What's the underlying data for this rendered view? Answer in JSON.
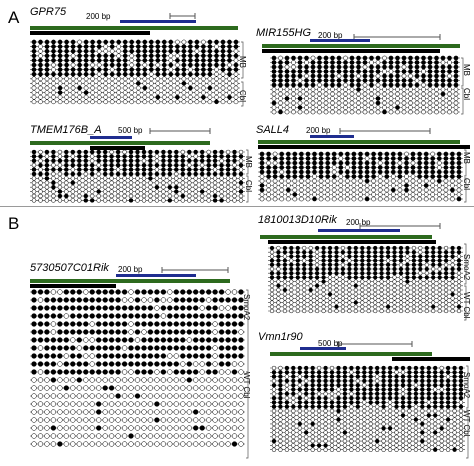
{
  "sections": {
    "a": "A",
    "b": "B"
  },
  "panels": [
    {
      "id": "gpr75",
      "gene": "GPR75",
      "scale": "200 bp",
      "groups": [
        "MB",
        "Cbl"
      ]
    },
    {
      "id": "mir155hg",
      "gene": "MIR155HG",
      "scale": "200 bp",
      "groups": [
        "MB",
        "Cbl"
      ]
    },
    {
      "id": "tmem176b",
      "gene": "TMEM176B_A",
      "scale": "500 bp",
      "groups": [
        "MB",
        "Cbl"
      ]
    },
    {
      "id": "sall4",
      "gene": "SALL4",
      "scale": "200 bp",
      "groups": [
        "MB",
        "Cbl"
      ]
    },
    {
      "id": "c01rik",
      "gene": "5730507C01Rik",
      "scale": "200 bp",
      "groups": [
        "SmoA2",
        "WT Cbl"
      ]
    },
    {
      "id": "d10rik",
      "gene": "1810013D10Rik",
      "scale": "200 bp",
      "groups": [
        "SmoA2",
        "WT Cbl"
      ]
    },
    {
      "id": "vmn1r90",
      "gene": "Vmn1r90",
      "scale": "500 bp",
      "groups": [
        "SmoA2",
        "WT Cbl"
      ]
    }
  ],
  "colors": {
    "green": "#2d6a1e",
    "blue": "#1f2d8f",
    "black": "#000000",
    "divider": "#9a9a9a"
  },
  "legend_marks": {
    "methylated": "filled-circle",
    "unmethylated": "open-circle"
  }
}
